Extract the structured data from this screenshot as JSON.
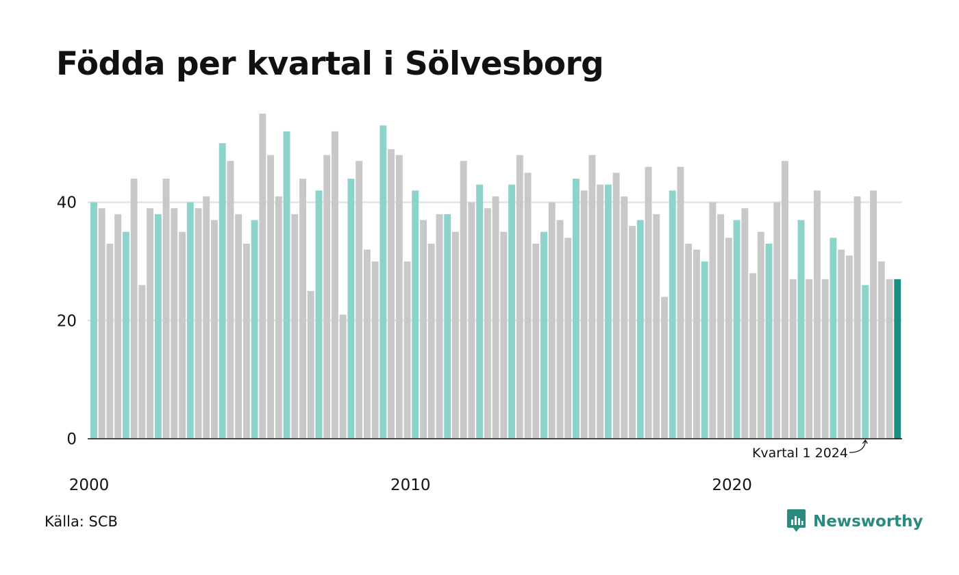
{
  "header": {
    "title": "Födda per kvartal i Sölvesborg"
  },
  "footer": {
    "source": "Källa: SCB",
    "brand": "Newsworthy"
  },
  "colors": {
    "q1": "#8cd3cc",
    "other": "#c8c8c8",
    "latest": "#1b8d83",
    "grid": "#e3e3e3",
    "axis": "#111111"
  },
  "chart_data": {
    "type": "bar",
    "title": "Födda per kvartal i Sölvesborg",
    "xlabel": "",
    "ylabel": "",
    "ylim": [
      0,
      55
    ],
    "y_ticks": [
      0,
      20,
      40
    ],
    "x_ticks": [
      {
        "year": 2000,
        "label": "2000"
      },
      {
        "year": 2010,
        "label": "2010"
      },
      {
        "year": 2020,
        "label": "2020"
      }
    ],
    "start": {
      "year": 2000,
      "quarter": 1
    },
    "values": [
      40,
      39,
      33,
      38,
      35,
      44,
      26,
      39,
      38,
      44,
      39,
      35,
      40,
      39,
      41,
      37,
      50,
      47,
      38,
      33,
      37,
      55,
      48,
      41,
      52,
      38,
      44,
      25,
      42,
      48,
      52,
      21,
      44,
      47,
      32,
      30,
      53,
      49,
      48,
      30,
      42,
      37,
      33,
      38,
      38,
      35,
      47,
      40,
      43,
      39,
      41,
      35,
      43,
      48,
      45,
      33,
      35,
      40,
      37,
      34,
      44,
      42,
      48,
      43,
      43,
      45,
      41,
      36,
      37,
      46,
      38,
      24,
      42,
      46,
      33,
      32,
      30,
      40,
      38,
      34,
      37,
      39,
      28,
      35,
      33,
      40,
      47,
      27,
      37,
      27,
      42,
      27,
      34,
      32,
      31,
      41,
      26,
      42,
      30,
      27,
      27
    ],
    "grid": true,
    "annotation": {
      "text": "Kvartal 1 2024",
      "year": 2024,
      "quarter": 1
    }
  }
}
